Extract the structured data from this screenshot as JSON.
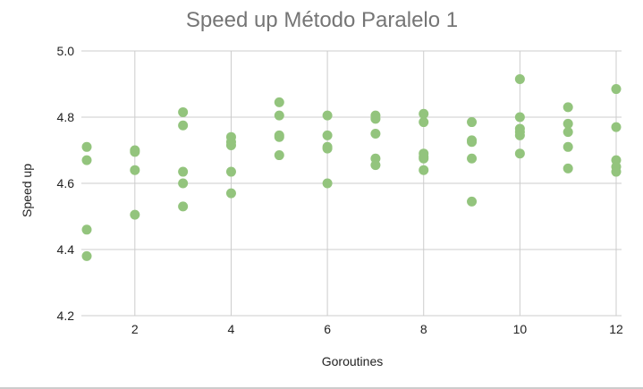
{
  "chart_data": {
    "type": "scatter",
    "title": "Speed up Método Paralelo 1",
    "xlabel": "Goroutines",
    "ylabel": "Speed up",
    "xlim": [
      1,
      12
    ],
    "ylim": [
      4.2,
      5.0
    ],
    "x_ticks": [
      2,
      4,
      6,
      8,
      10,
      12
    ],
    "y_ticks": [
      4.2,
      4.4,
      4.6,
      4.8,
      5.0
    ],
    "y_tick_labels": [
      "4.2",
      "4.4",
      "4.6",
      "4.8",
      "5.0"
    ],
    "x_tick_labels": [
      "2",
      "4",
      "6",
      "8",
      "10",
      "12"
    ],
    "grid": true,
    "legend": "none",
    "series": [
      {
        "color": "#93c47d",
        "points": [
          [
            1,
            4.71
          ],
          [
            1,
            4.67
          ],
          [
            1,
            4.46
          ],
          [
            1,
            4.38
          ],
          [
            2,
            4.7
          ],
          [
            2,
            4.695
          ],
          [
            2,
            4.64
          ],
          [
            2,
            4.505
          ],
          [
            3,
            4.815
          ],
          [
            3,
            4.775
          ],
          [
            3,
            4.635
          ],
          [
            3,
            4.6
          ],
          [
            3,
            4.53
          ],
          [
            4,
            4.74
          ],
          [
            4,
            4.725
          ],
          [
            4,
            4.715
          ],
          [
            4,
            4.635
          ],
          [
            4,
            4.57
          ],
          [
            5,
            4.845
          ],
          [
            5,
            4.805
          ],
          [
            5,
            4.745
          ],
          [
            5,
            4.74
          ],
          [
            5,
            4.685
          ],
          [
            6,
            4.805
          ],
          [
            6,
            4.745
          ],
          [
            6,
            4.71
          ],
          [
            6,
            4.705
          ],
          [
            6,
            4.6
          ],
          [
            7,
            4.805
          ],
          [
            7,
            4.795
          ],
          [
            7,
            4.75
          ],
          [
            7,
            4.675
          ],
          [
            7,
            4.655
          ],
          [
            8,
            4.81
          ],
          [
            8,
            4.785
          ],
          [
            8,
            4.69
          ],
          [
            8,
            4.68
          ],
          [
            8,
            4.675
          ],
          [
            8,
            4.64
          ],
          [
            9,
            4.785
          ],
          [
            9,
            4.73
          ],
          [
            9,
            4.725
          ],
          [
            9,
            4.675
          ],
          [
            9,
            4.545
          ],
          [
            10,
            4.915
          ],
          [
            10,
            4.8
          ],
          [
            10,
            4.765
          ],
          [
            10,
            4.755
          ],
          [
            10,
            4.745
          ],
          [
            10,
            4.69
          ],
          [
            11,
            4.83
          ],
          [
            11,
            4.78
          ],
          [
            11,
            4.755
          ],
          [
            11,
            4.71
          ],
          [
            11,
            4.645
          ],
          [
            12,
            4.885
          ],
          [
            12,
            4.77
          ],
          [
            12,
            4.67
          ],
          [
            12,
            4.65
          ],
          [
            12,
            4.635
          ]
        ]
      }
    ]
  }
}
